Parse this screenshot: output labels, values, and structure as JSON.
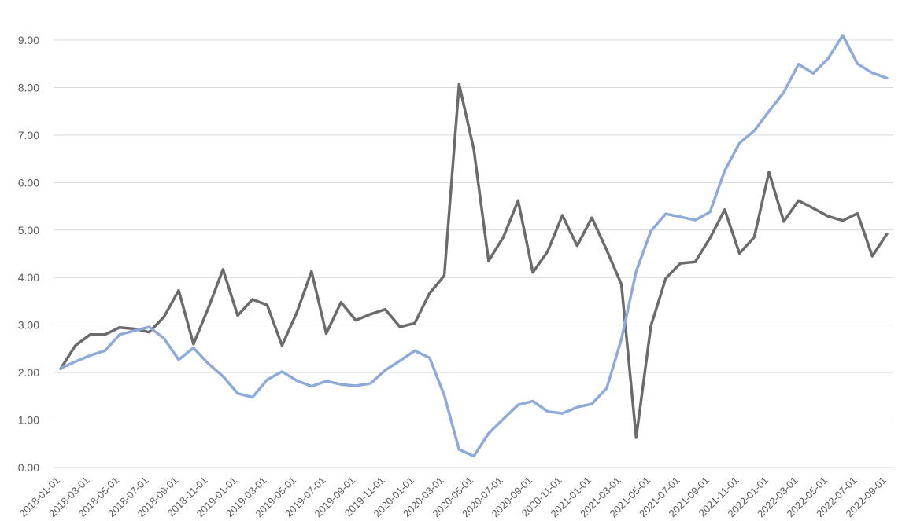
{
  "chart_data": {
    "type": "line",
    "title": "",
    "xlabel": "",
    "ylabel": "",
    "ylim": [
      0,
      9
    ],
    "grid": true,
    "legend": "none",
    "x_tick_labels": [
      "2018-01-01",
      "2018-03-01",
      "2018-05-01",
      "2018-07-01",
      "2018-09-01",
      "2018-11-01",
      "2019-01-01",
      "2019-03-01",
      "2019-05-01",
      "2019-07-01",
      "2019-09-01",
      "2019-11-01",
      "2020-01-01",
      "2020-03-01",
      "2020-05-01",
      "2020-07-01",
      "2020-09-01",
      "2020-11-01",
      "2021-01-01",
      "2021-03-01",
      "2021-05-01",
      "2021-07-01",
      "2021-09-01",
      "2021-11-01",
      "2022-01-01",
      "2022-03-01",
      "2022-05-01",
      "2022-07-01",
      "2022-09-01"
    ],
    "y_tick_labels": [
      "0.00",
      "1.00",
      "2.00",
      "3.00",
      "4.00",
      "5.00",
      "6.00",
      "7.00",
      "8.00",
      "9.00"
    ],
    "x": [
      "2018-01-01",
      "2018-02-01",
      "2018-03-01",
      "2018-04-01",
      "2018-05-01",
      "2018-06-01",
      "2018-07-01",
      "2018-08-01",
      "2018-09-01",
      "2018-10-01",
      "2018-11-01",
      "2018-12-01",
      "2019-01-01",
      "2019-02-01",
      "2019-03-01",
      "2019-04-01",
      "2019-05-01",
      "2019-06-01",
      "2019-07-01",
      "2019-08-01",
      "2019-09-01",
      "2019-10-01",
      "2019-11-01",
      "2019-12-01",
      "2020-01-01",
      "2020-02-01",
      "2020-03-01",
      "2020-04-01",
      "2020-05-01",
      "2020-06-01",
      "2020-07-01",
      "2020-08-01",
      "2020-09-01",
      "2020-10-01",
      "2020-11-01",
      "2020-12-01",
      "2021-01-01",
      "2021-02-01",
      "2021-03-01",
      "2021-04-01",
      "2021-05-01",
      "2021-06-01",
      "2021-07-01",
      "2021-08-01",
      "2021-09-01",
      "2021-10-01",
      "2021-11-01",
      "2021-12-01",
      "2022-01-01",
      "2022-02-01",
      "2022-03-01",
      "2022-04-01",
      "2022-05-01",
      "2022-06-01",
      "2022-07-01",
      "2022-08-01",
      "2022-09-01"
    ],
    "series": [
      {
        "color": "#6b6b6b",
        "values": [
          2.08,
          2.57,
          2.8,
          2.8,
          2.95,
          2.92,
          2.85,
          3.17,
          3.73,
          2.6,
          3.35,
          4.17,
          3.2,
          3.54,
          3.42,
          2.57,
          3.26,
          4.13,
          2.82,
          3.48,
          3.1,
          3.23,
          3.33,
          2.96,
          3.04,
          3.67,
          4.04,
          8.07,
          6.7,
          4.35,
          4.85,
          5.62,
          4.11,
          4.55,
          5.31,
          4.67,
          5.26,
          4.58,
          3.86,
          0.63,
          2.98,
          3.98,
          4.3,
          4.33,
          4.83,
          5.43,
          4.51,
          4.85,
          6.22,
          5.18,
          5.62,
          5.46,
          5.29,
          5.2,
          5.35,
          4.45,
          4.92
        ]
      },
      {
        "color": "#8eaadb",
        "values": [
          2.09,
          2.23,
          2.36,
          2.46,
          2.8,
          2.88,
          2.96,
          2.72,
          2.27,
          2.52,
          2.19,
          1.92,
          1.56,
          1.48,
          1.85,
          2.02,
          1.83,
          1.71,
          1.82,
          1.75,
          1.72,
          1.77,
          2.05,
          2.25,
          2.46,
          2.31,
          1.52,
          0.38,
          0.24,
          0.72,
          1.02,
          1.32,
          1.4,
          1.18,
          1.14,
          1.27,
          1.34,
          1.67,
          2.7,
          4.13,
          4.98,
          5.34,
          5.28,
          5.21,
          5.38,
          6.25,
          6.83,
          7.09,
          7.5,
          7.9,
          8.49,
          8.3,
          8.61,
          9.1,
          8.5,
          8.31,
          8.2
        ]
      }
    ]
  }
}
